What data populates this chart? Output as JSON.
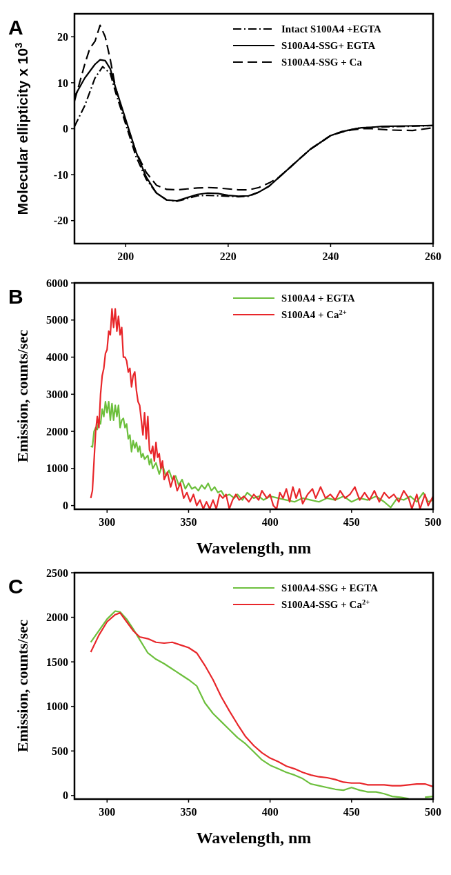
{
  "chart_data": [
    {
      "type": "line",
      "title": "A",
      "ylabel": "Molecular ellipticity x 10$^{3}$",
      "xlim": [
        190,
        260
      ],
      "xticks": [
        200,
        220,
        240,
        260
      ],
      "ylim": [
        -25,
        25
      ],
      "yticks": [
        -20,
        -10,
        0,
        10,
        20
      ],
      "grid": false,
      "legend": "top right",
      "series": [
        {
          "name": "Intact S100A4 +EGTA",
          "color": "#000000",
          "line_style": "dashdot",
          "x": [
            190,
            192,
            194,
            195.5,
            197,
            198,
            200,
            202,
            204,
            206,
            208,
            210,
            212,
            214,
            216,
            218,
            220,
            222,
            224,
            226,
            228,
            230,
            232,
            234,
            236,
            238,
            240,
            242,
            244,
            246,
            248,
            250,
            255,
            260
          ],
          "values": [
            0.5,
            5,
            11,
            13.5,
            12,
            8,
            1,
            -6,
            -11,
            -14,
            -15.5,
            -15.8,
            -15.2,
            -14.6,
            -14.5,
            -14.6,
            -14.7,
            -14.8,
            -14.7,
            -13.8,
            -12.5,
            -10.5,
            -8.5,
            -6.5,
            -4.5,
            -3,
            -1.5,
            -0.7,
            -0.2,
            0.2,
            0.3,
            0.4,
            0.5,
            0.7
          ]
        },
        {
          "name": "S100A4-SSG+ EGTA",
          "color": "#000000",
          "line_style": "solid",
          "x": [
            190,
            192,
            194,
            195,
            196,
            197,
            198,
            200,
            202,
            204,
            206,
            208,
            210,
            212,
            214,
            216,
            218,
            220,
            222,
            224,
            226,
            228,
            230,
            232,
            234,
            236,
            238,
            240,
            242,
            244,
            246,
            248,
            250,
            255,
            260
          ],
          "values": [
            7,
            11,
            14,
            15,
            14.8,
            13,
            9,
            2,
            -5,
            -10.5,
            -14,
            -15.5,
            -15.7,
            -15,
            -14.3,
            -14,
            -14.1,
            -14.5,
            -14.7,
            -14.6,
            -13.8,
            -12.5,
            -10.5,
            -8.5,
            -6.5,
            -4.5,
            -3,
            -1.5,
            -0.7,
            -0.2,
            0.2,
            0.3,
            0.5,
            0.6,
            0.7
          ]
        },
        {
          "name": "S100A4-SSG + Ca",
          "color": "#000000",
          "line_style": "dashed",
          "x": [
            190,
            192,
            193,
            194,
            195,
            196,
            197,
            198,
            200,
            202,
            204,
            206,
            208,
            210,
            212,
            214,
            216,
            218,
            220,
            222,
            224,
            226,
            228,
            230,
            232,
            234,
            236,
            238,
            240,
            242,
            244,
            246,
            248,
            252,
            256,
            260
          ],
          "values": [
            6,
            14,
            17.5,
            19,
            22.5,
            20,
            15,
            9,
            1.5,
            -5,
            -9.5,
            -12.3,
            -13.2,
            -13.3,
            -13.1,
            -12.9,
            -12.8,
            -12.9,
            -13.1,
            -13.3,
            -13.3,
            -12.8,
            -11.8,
            -10.5,
            -8.5,
            -6.5,
            -4.5,
            -3,
            -1.5,
            -0.8,
            -0.3,
            0,
            0,
            -0.3,
            -0.4,
            0.2
          ]
        }
      ]
    },
    {
      "type": "line",
      "title": "B",
      "xlabel": "Wavelength, nm",
      "ylabel": "Emission, counts/sec",
      "xlim": [
        280,
        500
      ],
      "xticks": [
        300,
        350,
        400,
        450,
        500
      ],
      "ylim": [
        -100,
        6000
      ],
      "yticks": [
        0,
        1000,
        2000,
        3000,
        4000,
        5000,
        6000
      ],
      "grid": false,
      "legend": "top right",
      "series": [
        {
          "name": "S100A4 + EGTA",
          "color": "#6cbf3c",
          "line_style": "solid",
          "x": [
            290,
            291,
            292,
            293,
            294,
            295,
            296,
            297,
            298,
            299,
            300,
            301,
            302,
            303,
            304,
            305,
            306,
            307,
            308,
            309,
            310,
            311,
            312,
            313,
            314,
            315,
            316,
            317,
            318,
            319,
            320,
            321,
            322,
            323,
            324,
            325,
            326,
            327,
            328,
            330,
            332,
            334,
            336,
            338,
            340,
            342,
            344,
            346,
            348,
            350,
            352,
            354,
            356,
            358,
            360,
            362,
            364,
            366,
            368,
            370,
            372,
            375,
            378,
            380,
            383,
            386,
            390,
            393,
            396,
            400,
            405,
            410,
            415,
            420,
            425,
            430,
            435,
            440,
            445,
            450,
            455,
            460,
            465,
            470,
            474,
            478,
            482,
            486,
            490,
            494,
            497,
            500
          ],
          "values": [
            1600,
            1580,
            2000,
            2100,
            2050,
            2300,
            2200,
            2600,
            2400,
            2800,
            2500,
            2800,
            2300,
            2750,
            2300,
            2700,
            2400,
            2700,
            2100,
            2300,
            2350,
            2100,
            2200,
            1800,
            1900,
            1450,
            1750,
            1550,
            1700,
            1450,
            1600,
            1300,
            1400,
            1250,
            1300,
            1350,
            1100,
            1250,
            1000,
            1150,
            850,
            1100,
            800,
            950,
            700,
            800,
            550,
            700,
            450,
            600,
            450,
            500,
            400,
            550,
            450,
            600,
            400,
            500,
            350,
            400,
            250,
            300,
            200,
            300,
            150,
            350,
            200,
            250,
            150,
            250,
            200,
            150,
            100,
            200,
            150,
            100,
            200,
            150,
            250,
            100,
            200,
            150,
            250,
            100,
            -50,
            200,
            150,
            250,
            100,
            350,
            100,
            150
          ]
        },
        {
          "name": "S100A4 + Ca$^{2+}$",
          "color": "#e8262a",
          "line_style": "solid",
          "x": [
            290,
            291,
            292,
            293,
            294,
            295,
            296,
            297,
            298,
            299,
            300,
            301,
            302,
            303,
            304,
            305,
            306,
            307,
            308,
            309,
            310,
            311,
            312,
            313,
            314,
            315,
            316,
            317,
            318,
            319,
            320,
            321,
            322,
            323,
            324,
            325,
            326,
            327,
            328,
            329,
            330,
            331,
            332,
            333,
            334,
            335,
            337,
            339,
            341,
            343,
            345,
            347,
            349,
            351,
            353,
            355,
            357,
            359,
            361,
            363,
            365,
            367,
            369,
            371,
            373,
            375,
            377,
            379,
            381,
            384,
            387,
            390,
            393,
            395,
            398,
            400,
            402,
            404,
            406,
            408,
            410,
            412,
            414,
            416,
            418,
            420,
            423,
            426,
            428,
            431,
            434,
            437,
            440,
            443,
            446,
            449,
            452,
            455,
            458,
            461,
            464,
            467,
            470,
            473,
            476,
            479,
            482,
            485,
            487,
            490,
            492,
            495,
            497,
            500
          ],
          "values": [
            200,
            400,
            1200,
            2000,
            2400,
            2100,
            3000,
            3500,
            3700,
            4100,
            4200,
            4700,
            4600,
            5300,
            4800,
            5300,
            4700,
            5100,
            4600,
            4800,
            4000,
            4000,
            3900,
            3600,
            3700,
            3200,
            3500,
            3600,
            3100,
            2800,
            2700,
            2300,
            1900,
            2500,
            1800,
            2400,
            1500,
            1400,
            1600,
            1200,
            1700,
            1300,
            1400,
            1000,
            1200,
            700,
            900,
            500,
            800,
            400,
            600,
            200,
            350,
            100,
            300,
            0,
            150,
            -90,
            100,
            -90,
            150,
            -90,
            300,
            200,
            300,
            -90,
            150,
            300,
            150,
            250,
            100,
            300,
            150,
            400,
            200,
            300,
            0,
            -90,
            350,
            200,
            450,
            100,
            500,
            200,
            450,
            50,
            300,
            450,
            200,
            500,
            200,
            300,
            150,
            400,
            200,
            300,
            500,
            150,
            350,
            150,
            400,
            100,
            350,
            200,
            300,
            100,
            400,
            200,
            -90,
            300,
            -90,
            300,
            0,
            250
          ]
        }
      ]
    },
    {
      "type": "line",
      "title": "C",
      "xlabel": "Wavelength, nm",
      "ylabel": "Emission, counts/sec",
      "xlim": [
        280,
        500
      ],
      "xticks": [
        300,
        350,
        400,
        450,
        500
      ],
      "ylim": [
        -40,
        2500
      ],
      "yticks": [
        0,
        500,
        1000,
        1500,
        2000,
        2500
      ],
      "grid": false,
      "legend": "top right",
      "series": [
        {
          "name": "S100A4-SSG + EGTA",
          "color": "#6cbf3c",
          "line_style": "solid",
          "x": [
            290,
            295,
            300,
            305,
            308,
            312,
            316,
            320,
            325,
            330,
            335,
            340,
            345,
            350,
            355,
            360,
            365,
            370,
            375,
            380,
            385,
            390,
            395,
            400,
            405,
            410,
            415,
            420,
            425,
            430,
            435,
            440,
            445,
            450,
            455,
            460,
            465,
            470,
            475,
            480,
            485,
            490,
            495,
            500
          ],
          "values": [
            1720,
            1850,
            1980,
            2070,
            2060,
            1980,
            1870,
            1750,
            1600,
            1530,
            1480,
            1420,
            1360,
            1300,
            1230,
            1040,
            920,
            830,
            740,
            650,
            580,
            490,
            400,
            340,
            300,
            260,
            230,
            190,
            130,
            110,
            90,
            70,
            60,
            90,
            60,
            40,
            40,
            20,
            -10,
            -20,
            -35,
            null,
            -20,
            -10
          ]
        },
        {
          "name": "S100A4-SSG + Ca$^{2+}$",
          "color": "#e8262a",
          "line_style": "solid",
          "x": [
            290,
            295,
            300,
            305,
            308,
            312,
            316,
            320,
            325,
            330,
            335,
            340,
            345,
            350,
            355,
            360,
            365,
            370,
            375,
            380,
            385,
            390,
            395,
            400,
            405,
            410,
            415,
            420,
            425,
            430,
            435,
            440,
            445,
            450,
            455,
            460,
            465,
            470,
            475,
            480,
            485,
            490,
            495,
            500
          ],
          "values": [
            1610,
            1800,
            1950,
            2030,
            2050,
            1950,
            1850,
            1780,
            1760,
            1720,
            1710,
            1720,
            1690,
            1660,
            1600,
            1460,
            1300,
            1110,
            950,
            800,
            660,
            560,
            480,
            420,
            380,
            330,
            300,
            260,
            230,
            210,
            200,
            180,
            150,
            140,
            140,
            120,
            120,
            120,
            110,
            110,
            120,
            130,
            130,
            100
          ]
        }
      ]
    }
  ]
}
